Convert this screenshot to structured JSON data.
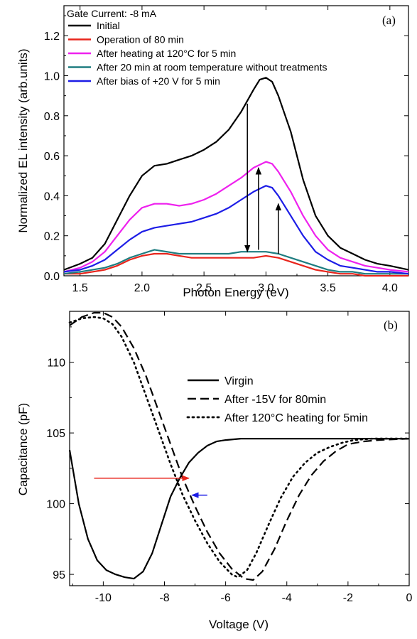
{
  "chart_data": [
    {
      "panel": "(a)",
      "type": "line",
      "xlabel": "Photon Energy (eV)",
      "ylabel": "Normalized EL intensity (arb.units)",
      "xlim": [
        1.37,
        4.15
      ],
      "ylim": [
        0.0,
        1.35
      ],
      "xticks": [
        "1.5",
        "2.0",
        "2.5",
        "3.0",
        "3.5",
        "4.0"
      ],
      "yticks": [
        "0.0",
        "0.2",
        "0.4",
        "0.6",
        "0.8",
        "1.0",
        "1.2"
      ],
      "legend_title": "Gate Current: -8 mA",
      "legend_position": "top-left",
      "grid": false,
      "series": [
        {
          "name": "Initial",
          "color": "#000000",
          "x": [
            1.37,
            1.5,
            1.6,
            1.7,
            1.8,
            1.9,
            2.0,
            2.1,
            2.2,
            2.3,
            2.4,
            2.5,
            2.6,
            2.7,
            2.8,
            2.9,
            2.95,
            3.0,
            3.05,
            3.1,
            3.2,
            3.3,
            3.4,
            3.5,
            3.6,
            3.7,
            3.8,
            3.9,
            4.0,
            4.15
          ],
          "y": [
            0.03,
            0.06,
            0.09,
            0.16,
            0.28,
            0.4,
            0.5,
            0.55,
            0.56,
            0.58,
            0.6,
            0.63,
            0.67,
            0.73,
            0.82,
            0.93,
            0.98,
            0.99,
            0.97,
            0.9,
            0.72,
            0.48,
            0.3,
            0.2,
            0.14,
            0.11,
            0.08,
            0.06,
            0.05,
            0.03
          ]
        },
        {
          "name": "Operation of 80 min",
          "color": "#e8251c",
          "x": [
            1.37,
            1.5,
            1.6,
            1.7,
            1.8,
            1.9,
            2.0,
            2.1,
            2.2,
            2.3,
            2.4,
            2.5,
            2.6,
            2.7,
            2.8,
            2.9,
            3.0,
            3.1,
            3.2,
            3.3,
            3.4,
            3.5,
            3.6,
            3.7,
            3.8,
            4.0,
            4.15
          ],
          "y": [
            0.01,
            0.01,
            0.02,
            0.03,
            0.05,
            0.08,
            0.1,
            0.11,
            0.11,
            0.1,
            0.09,
            0.09,
            0.09,
            0.09,
            0.09,
            0.09,
            0.1,
            0.09,
            0.07,
            0.05,
            0.03,
            0.02,
            0.01,
            0.01,
            0.0,
            0.0,
            0.0
          ]
        },
        {
          "name": "After heating at 120°C for 5 min",
          "color": "#ee21ee",
          "x": [
            1.37,
            1.5,
            1.6,
            1.7,
            1.8,
            1.9,
            2.0,
            2.1,
            2.2,
            2.3,
            2.4,
            2.5,
            2.6,
            2.7,
            2.8,
            2.9,
            3.0,
            3.05,
            3.1,
            3.2,
            3.3,
            3.4,
            3.5,
            3.6,
            3.7,
            3.8,
            3.9,
            4.0,
            4.15
          ],
          "y": [
            0.02,
            0.04,
            0.07,
            0.12,
            0.2,
            0.28,
            0.34,
            0.36,
            0.36,
            0.35,
            0.36,
            0.38,
            0.41,
            0.45,
            0.49,
            0.54,
            0.57,
            0.56,
            0.52,
            0.42,
            0.3,
            0.2,
            0.13,
            0.09,
            0.07,
            0.05,
            0.04,
            0.03,
            0.02
          ]
        },
        {
          "name": "After 20 min at room temperature without treatments",
          "color": "#1e7d80",
          "x": [
            1.37,
            1.5,
            1.6,
            1.7,
            1.8,
            1.9,
            2.0,
            2.1,
            2.2,
            2.3,
            2.4,
            2.5,
            2.6,
            2.7,
            2.8,
            2.9,
            3.0,
            3.1,
            3.2,
            3.3,
            3.4,
            3.5,
            3.6,
            3.7,
            3.8,
            4.0,
            4.15
          ],
          "y": [
            0.01,
            0.02,
            0.03,
            0.04,
            0.06,
            0.09,
            0.11,
            0.13,
            0.12,
            0.11,
            0.11,
            0.11,
            0.11,
            0.11,
            0.12,
            0.12,
            0.12,
            0.11,
            0.09,
            0.07,
            0.05,
            0.03,
            0.02,
            0.02,
            0.01,
            0.01,
            0.01
          ]
        },
        {
          "name": "After bias of +20 V for 5 min",
          "color": "#1d1de6",
          "x": [
            1.37,
            1.5,
            1.6,
            1.7,
            1.8,
            1.9,
            2.0,
            2.1,
            2.2,
            2.3,
            2.4,
            2.5,
            2.6,
            2.7,
            2.8,
            2.9,
            3.0,
            3.05,
            3.1,
            3.2,
            3.3,
            3.4,
            3.5,
            3.6,
            3.7,
            3.8,
            3.9,
            4.0,
            4.15
          ],
          "y": [
            0.02,
            0.03,
            0.05,
            0.08,
            0.13,
            0.18,
            0.22,
            0.24,
            0.25,
            0.26,
            0.27,
            0.29,
            0.31,
            0.34,
            0.38,
            0.42,
            0.45,
            0.44,
            0.4,
            0.3,
            0.2,
            0.12,
            0.08,
            0.05,
            0.04,
            0.03,
            0.02,
            0.02,
            0.01
          ]
        }
      ],
      "arrows": [
        {
          "x1": 2.85,
          "y1": 0.86,
          "x2": 2.85,
          "y2": 0.12,
          "color": "#000000"
        },
        {
          "x1": 2.94,
          "y1": 0.13,
          "x2": 2.94,
          "y2": 0.54,
          "color": "#000000"
        },
        {
          "x1": 3.1,
          "y1": 0.11,
          "x2": 3.1,
          "y2": 0.36,
          "color": "#000000"
        }
      ]
    },
    {
      "panel": "(b)",
      "type": "line",
      "xlabel": "Voltage (V)",
      "ylabel": "Capacitance (pF)",
      "xlim": [
        -11.1,
        0
      ],
      "ylim": [
        94.2,
        113.6
      ],
      "xticks": [
        "-10",
        "-8",
        "-6",
        "-4",
        "-2",
        "0"
      ],
      "yticks": [
        "95",
        "100",
        "105",
        "110"
      ],
      "legend_position": "center-right",
      "grid": false,
      "series": [
        {
          "name": "Virgin",
          "style": "solid",
          "x": [
            -11.1,
            -10.8,
            -10.5,
            -10.2,
            -9.9,
            -9.6,
            -9.3,
            -9.0,
            -8.7,
            -8.4,
            -8.1,
            -7.8,
            -7.5,
            -7.2,
            -6.9,
            -6.6,
            -6.3,
            -6.0,
            -5.5,
            -5.0,
            -4.0,
            -3.0,
            -2.0,
            -1.0,
            0.0
          ],
          "y": [
            103.8,
            100.0,
            97.5,
            96.0,
            95.3,
            95.0,
            94.8,
            94.7,
            95.2,
            96.5,
            98.5,
            100.5,
            101.8,
            102.9,
            103.6,
            104.1,
            104.4,
            104.5,
            104.6,
            104.6,
            104.6,
            104.6,
            104.6,
            104.6,
            104.6
          ]
        },
        {
          "name": "After -15V for 80min",
          "style": "dashed",
          "x": [
            -11.1,
            -10.7,
            -10.3,
            -10.0,
            -9.7,
            -9.4,
            -9.0,
            -8.6,
            -8.2,
            -7.8,
            -7.4,
            -7.0,
            -6.6,
            -6.2,
            -5.8,
            -5.4,
            -5.1,
            -4.8,
            -4.4,
            -4.0,
            -3.6,
            -3.2,
            -2.8,
            -2.4,
            -2.0,
            -1.5,
            -1.0,
            0.0
          ],
          "y": [
            112.6,
            113.2,
            113.5,
            113.5,
            113.2,
            112.5,
            111.0,
            109.0,
            106.6,
            104.2,
            101.8,
            99.8,
            98.0,
            96.5,
            95.4,
            94.7,
            94.6,
            95.2,
            96.8,
            98.8,
            100.6,
            102.0,
            103.0,
            103.7,
            104.2,
            104.4,
            104.5,
            104.6
          ]
        },
        {
          "name": "After 120°C heating for 5min",
          "style": "dotted",
          "x": [
            -11.1,
            -10.7,
            -10.3,
            -10.0,
            -9.7,
            -9.4,
            -9.0,
            -8.6,
            -8.2,
            -7.8,
            -7.4,
            -7.0,
            -6.6,
            -6.2,
            -5.8,
            -5.6,
            -5.3,
            -5.0,
            -4.6,
            -4.2,
            -3.8,
            -3.4,
            -3.0,
            -2.6,
            -2.2,
            -1.8,
            -1.2,
            0.0
          ],
          "y": [
            112.8,
            113.1,
            113.2,
            113.1,
            112.7,
            111.8,
            110.0,
            107.6,
            105.2,
            102.8,
            100.6,
            98.8,
            97.2,
            95.9,
            95.0,
            94.8,
            95.3,
            96.5,
            98.5,
            100.4,
            101.9,
            102.9,
            103.6,
            104.0,
            104.3,
            104.5,
            104.6,
            104.6
          ]
        }
      ],
      "arrows": [
        {
          "x1": -10.3,
          "y1": 101.8,
          "x2": -7.2,
          "y2": 101.8,
          "color": "#e8251c"
        },
        {
          "x1": -6.6,
          "y1": 100.6,
          "x2": -7.1,
          "y2": 100.6,
          "color": "#1d1de6"
        }
      ]
    }
  ],
  "panel_labels": [
    "(a)",
    "(b)"
  ]
}
